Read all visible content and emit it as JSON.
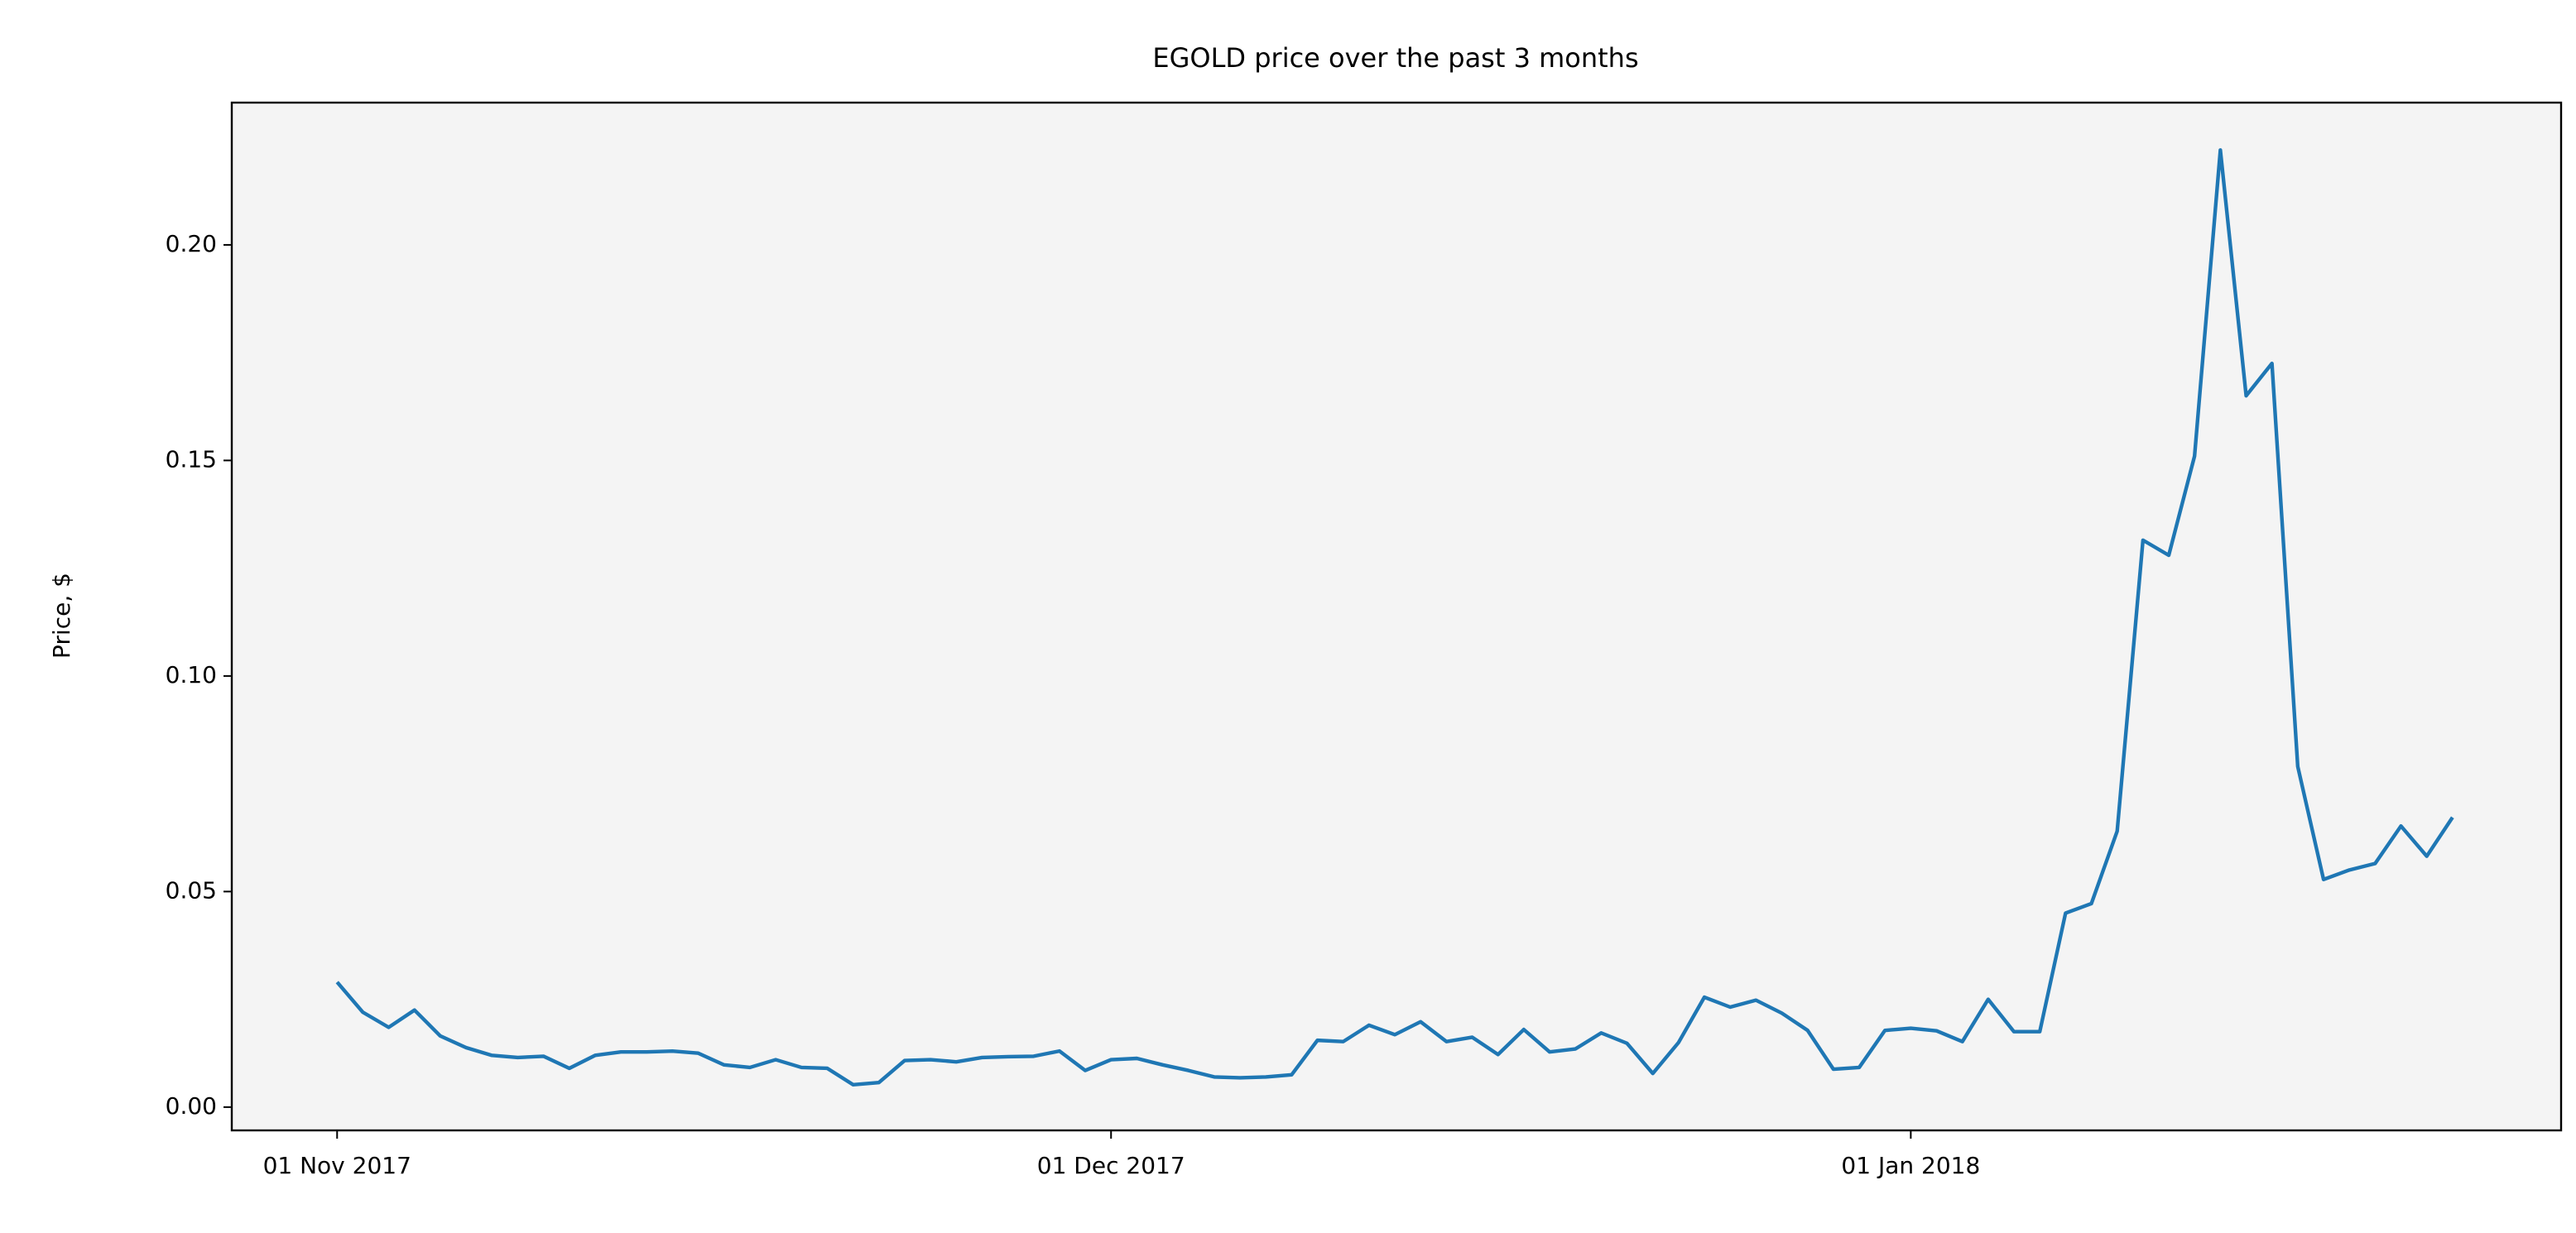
{
  "chart_data": {
    "type": "line",
    "title": "EGOLD price over the past 3 months",
    "y_label": "Price, $",
    "x": [
      "2017-11-01",
      "2017-11-02",
      "2017-11-03",
      "2017-11-04",
      "2017-11-05",
      "2017-11-06",
      "2017-11-07",
      "2017-11-08",
      "2017-11-09",
      "2017-11-10",
      "2017-11-11",
      "2017-11-12",
      "2017-11-13",
      "2017-11-14",
      "2017-11-15",
      "2017-11-16",
      "2017-11-17",
      "2017-11-18",
      "2017-11-19",
      "2017-11-20",
      "2017-11-21",
      "2017-11-22",
      "2017-11-23",
      "2017-11-24",
      "2017-11-25",
      "2017-11-26",
      "2017-11-27",
      "2017-11-28",
      "2017-11-29",
      "2017-11-30",
      "2017-12-01",
      "2017-12-02",
      "2017-12-03",
      "2017-12-04",
      "2017-12-05",
      "2017-12-06",
      "2017-12-07",
      "2017-12-08",
      "2017-12-09",
      "2017-12-10",
      "2017-12-11",
      "2017-12-12",
      "2017-12-13",
      "2017-12-14",
      "2017-12-15",
      "2017-12-16",
      "2017-12-17",
      "2017-12-18",
      "2017-12-19",
      "2017-12-20",
      "2017-12-21",
      "2017-12-22",
      "2017-12-23",
      "2017-12-24",
      "2017-12-25",
      "2017-12-26",
      "2017-12-27",
      "2017-12-28",
      "2017-12-29",
      "2017-12-30",
      "2017-12-31",
      "2018-01-01",
      "2018-01-02",
      "2018-01-03",
      "2018-01-04",
      "2018-01-05",
      "2018-01-06",
      "2018-01-07",
      "2018-01-08",
      "2018-01-09",
      "2018-01-10",
      "2018-01-11",
      "2018-01-12",
      "2018-01-13",
      "2018-01-14",
      "2018-01-15",
      "2018-01-16",
      "2018-01-17",
      "2018-01-18",
      "2018-01-19",
      "2018-01-20",
      "2018-01-21",
      "2018-01-22"
    ],
    "series": [
      {
        "color": "#1f77b4",
        "values": [
          0.029,
          0.022,
          0.0185,
          0.0225,
          0.0165,
          0.0138,
          0.012,
          0.0115,
          0.0118,
          0.009,
          0.012,
          0.0128,
          0.0128,
          0.013,
          0.0125,
          0.0098,
          0.0092,
          0.011,
          0.0092,
          0.009,
          0.0052,
          0.0057,
          0.0108,
          0.011,
          0.0105,
          0.0115,
          0.0117,
          0.0118,
          0.013,
          0.0085,
          0.011,
          0.0113,
          0.0098,
          0.0085,
          0.007,
          0.0068,
          0.007,
          0.0075,
          0.0155,
          0.0152,
          0.019,
          0.0168,
          0.0198,
          0.0152,
          0.0162,
          0.0122,
          0.018,
          0.0128,
          0.0135,
          0.0172,
          0.0148,
          0.0078,
          0.015,
          0.0255,
          0.0232,
          0.0248,
          0.0218,
          0.0178,
          0.0088,
          0.0092,
          0.0178,
          0.0183,
          0.0177,
          0.0152,
          0.025,
          0.0175,
          0.0175,
          0.045,
          0.0472,
          0.064,
          0.1315,
          0.128,
          0.151,
          0.222,
          0.165,
          0.1725,
          0.079,
          0.0528,
          0.055,
          0.0565,
          0.0652,
          0.0582,
          0.0672
        ]
      }
    ],
    "xlim": [
      "2017-10-27T22:00",
      "2018-01-26T05:00"
    ],
    "xticks": [
      {
        "value": "2017-11-01",
        "label": "01 Nov 2017"
      },
      {
        "value": "2017-12-01",
        "label": "01 Dec 2017"
      },
      {
        "value": "2018-01-01",
        "label": "01 Jan 2018"
      }
    ],
    "ylim": [
      -0.0054,
      0.233
    ],
    "yticks": [
      {
        "value": 0,
        "label": "0.00"
      },
      0.05,
      {
        "value": 0.1,
        "label": "0.10"
      },
      0.15,
      {
        "value": 0.2,
        "label": "0.20"
      }
    ],
    "background": "#f4f4f4"
  }
}
